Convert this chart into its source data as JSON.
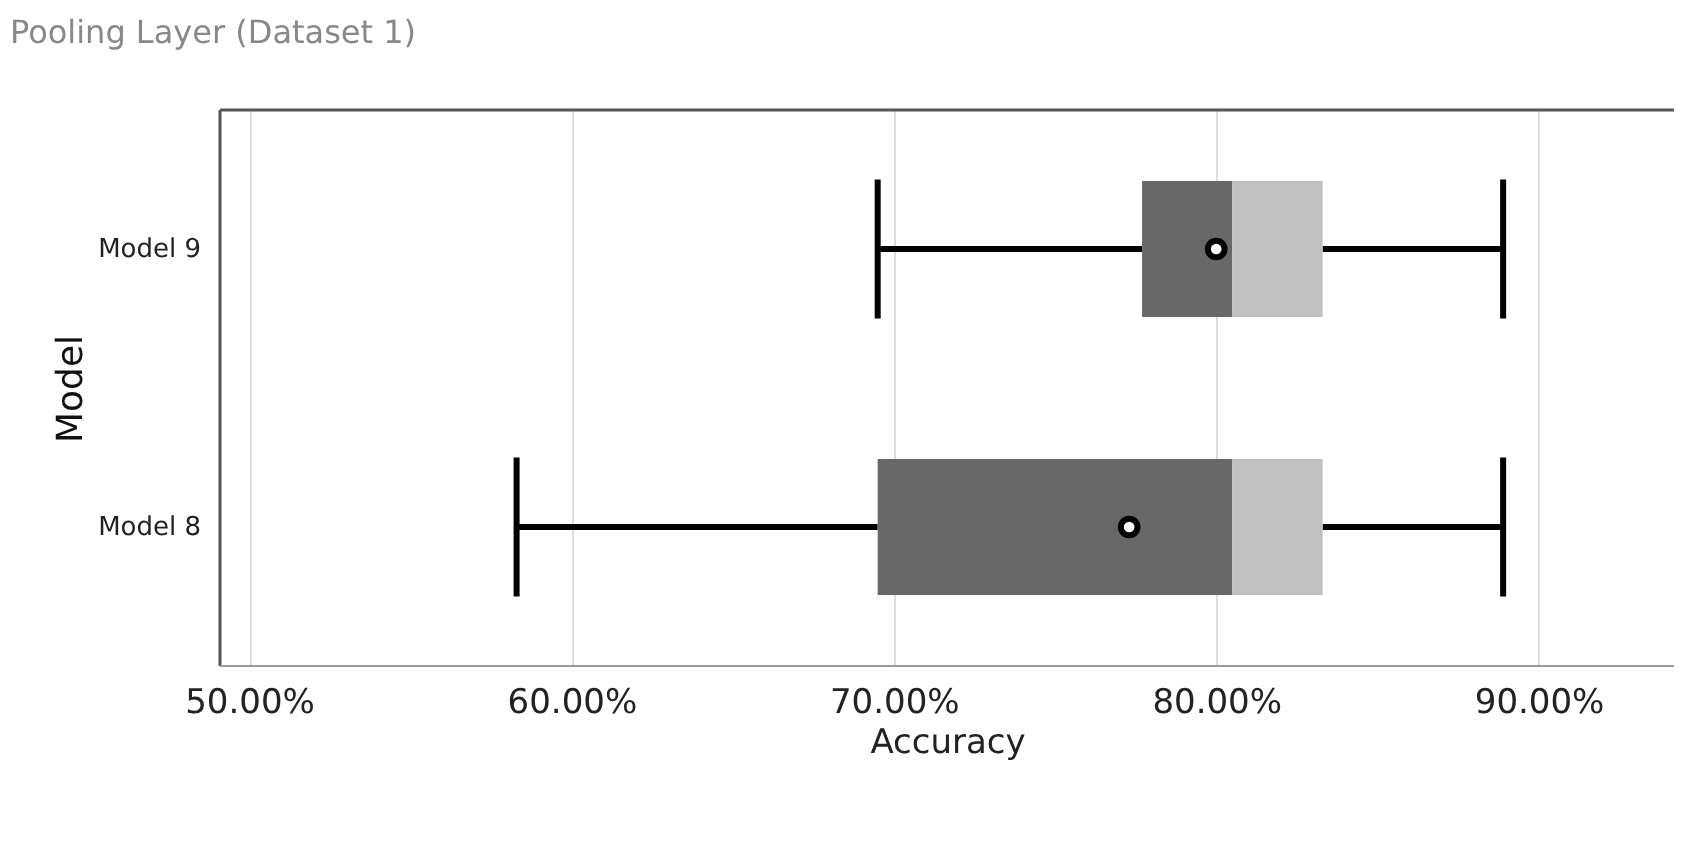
{
  "chart_data": {
    "type": "box",
    "title": "Pooling Layer (Dataset 1)",
    "xlabel": "Accuracy",
    "ylabel": "Model",
    "orientation": "horizontal",
    "categories": [
      "Model 9",
      "Model 8"
    ],
    "series": [
      {
        "color": "#686868",
        "boxes": [
          {
            "low": 69.5,
            "q1": 77.7,
            "median": 80.5,
            "q3": 83.3,
            "high": 88.9,
            "mean": 80.0
          },
          {
            "low": 58.3,
            "q1": 69.5,
            "median": 80.5,
            "q3": 83.3,
            "high": 88.9,
            "mean": 77.3
          }
        ]
      }
    ],
    "xlim": [
      49.1,
      94.2
    ],
    "xticks": [
      {
        "value": 50,
        "label": "50.00%"
      },
      {
        "value": 60,
        "label": "60.00%"
      },
      {
        "value": 70,
        "label": "70.00%"
      },
      {
        "value": 80,
        "label": "80.00%"
      },
      {
        "value": 90,
        "label": "90.00%"
      }
    ],
    "grid": "x",
    "marker": "circle"
  }
}
